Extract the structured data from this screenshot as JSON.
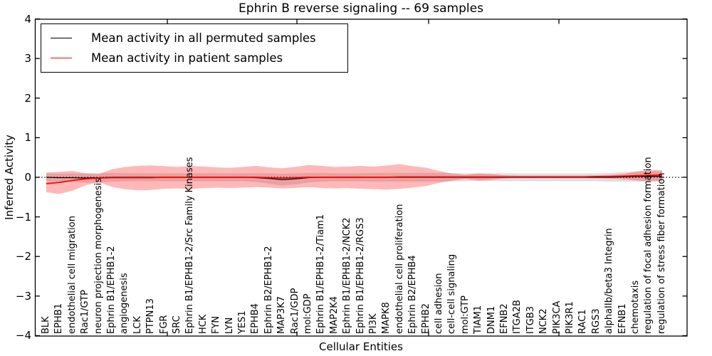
{
  "figure": {
    "title": "Ephrin B reverse signaling -- 69 samples",
    "xlabel": "Cellular Entities",
    "ylabel": "Inferred Activity"
  },
  "legend": {
    "items": [
      {
        "label": "Mean activity in all permuted samples",
        "color": "#000000"
      },
      {
        "label": "Mean activity in patient samples",
        "color": "#ff0000"
      }
    ]
  },
  "colors": {
    "patient_line": "#ff0000",
    "permuted_line": "#000000",
    "patient_band": "rgba(255,0,0,0.28)",
    "permuted_band": "rgba(128,128,128,0.25)",
    "axis": "#000000"
  },
  "chart_data": {
    "type": "line",
    "title": "Ephrin B reverse signaling -- 69 samples",
    "xlabel": "Cellular Entities",
    "ylabel": "Inferred Activity",
    "ylim": [
      -4,
      4
    ],
    "yticks": [
      -4,
      -3,
      -2,
      -1,
      0,
      1,
      2,
      3,
      4
    ],
    "grid": false,
    "legend_position": "upper left",
    "zero_line": 0,
    "categories": [
      "BLK",
      "EPHB1",
      "endothelial cell migration",
      "Rac1/GTP",
      "neuron projection morphogenesis",
      "Ephrin B1/EPHB1-2",
      "angiogenesis",
      "LCK",
      "PTPN13",
      "FGR",
      "SRC",
      "Ephrin B1/EPHB1-2/Src Family Kinases",
      "HCK",
      "FYN",
      "LYN",
      "YES1",
      "EPHB4",
      "Ephrin B2/EPHB1-2",
      "MAP3K7",
      "Rac1/GDP",
      "mol:GDP",
      "Ephrin B1/EPHB1-2/Tiam1",
      "MAP2K4",
      "Ephrin B1/EPHB1-2/NCK2",
      "Ephrin B1/EPHB1-2/RGS3",
      "PI3K",
      "MAPK8",
      "endothelial cell proliferation",
      "Ephrin B2/EPHB4",
      "EPHB2",
      "cell adhesion",
      "cell-cell signaling",
      "mol:GTP",
      "TIAM1",
      "DNM1",
      "EFNB2",
      "ITGA2B",
      "ITGB3",
      "NCK2",
      "PIK3CA",
      "PIK3R1",
      "RAC1",
      "RGS3",
      "alphaIIb/beta3 Integrin",
      "EFNB1",
      "chemotaxis",
      "regulation of focal adhesion formation",
      "regulation of stress fiber formation"
    ],
    "series": [
      {
        "name": "Mean activity in all permuted samples",
        "color": "#000000",
        "values": [
          0.0,
          -0.01,
          -0.01,
          -0.02,
          -0.01,
          0.0,
          0.0,
          0.0,
          0.0,
          0.0,
          0.0,
          0.0,
          0.0,
          0.0,
          0.0,
          0.0,
          -0.01,
          -0.03,
          -0.06,
          -0.04,
          -0.01,
          0.0,
          0.0,
          0.0,
          0.0,
          0.0,
          0.0,
          0.0,
          0.0,
          0.0,
          0.0,
          0.0,
          0.0,
          0.0,
          0.0,
          0.0,
          0.0,
          0.0,
          0.0,
          0.0,
          0.0,
          0.0,
          0.0,
          0.0,
          0.01,
          0.02,
          0.02,
          0.03
        ]
      },
      {
        "name": "Mean activity in patient samples",
        "color": "#ff0000",
        "values": [
          -0.16,
          -0.13,
          -0.08,
          -0.04,
          -0.02,
          -0.01,
          -0.01,
          -0.01,
          -0.01,
          0.0,
          0.0,
          0.0,
          0.0,
          0.0,
          0.0,
          0.0,
          0.0,
          -0.01,
          -0.02,
          -0.01,
          0.0,
          0.0,
          0.0,
          0.0,
          0.0,
          0.0,
          0.0,
          0.01,
          0.01,
          0.01,
          0.01,
          0.01,
          0.01,
          0.01,
          0.01,
          0.01,
          0.01,
          0.01,
          0.01,
          0.01,
          0.01,
          0.01,
          0.02,
          0.02,
          0.03,
          0.04,
          0.05,
          0.06
        ]
      }
    ],
    "bands": [
      {
        "name": "permuted samples std band",
        "color": "rgba(128,128,128,0.25)",
        "upper": [
          0.1,
          0.09,
          0.1,
          0.1,
          0.11,
          0.11,
          0.1,
          0.1,
          0.1,
          0.1,
          0.1,
          0.1,
          0.1,
          0.1,
          0.1,
          0.1,
          0.1,
          0.1,
          0.09,
          0.1,
          0.11,
          0.11,
          0.1,
          0.1,
          0.1,
          0.11,
          0.11,
          0.11,
          0.11,
          0.11,
          0.11,
          0.11,
          0.1,
          0.1,
          0.1,
          0.1,
          0.1,
          0.1,
          0.1,
          0.1,
          0.1,
          0.1,
          0.1,
          0.11,
          0.13,
          0.15,
          0.15,
          0.15
        ],
        "lower": [
          -0.1,
          -0.11,
          -0.12,
          -0.14,
          -0.13,
          -0.11,
          -0.1,
          -0.1,
          -0.1,
          -0.1,
          -0.1,
          -0.1,
          -0.1,
          -0.1,
          -0.1,
          -0.1,
          -0.12,
          -0.16,
          -0.21,
          -0.18,
          -0.13,
          -0.11,
          -0.1,
          -0.1,
          -0.1,
          -0.11,
          -0.11,
          -0.11,
          -0.11,
          -0.11,
          -0.11,
          -0.11,
          -0.1,
          -0.1,
          -0.1,
          -0.1,
          -0.1,
          -0.1,
          -0.1,
          -0.1,
          -0.1,
          -0.1,
          -0.1,
          -0.11,
          -0.11,
          -0.11,
          -0.11,
          -0.09
        ]
      },
      {
        "name": "patient samples std band",
        "color": "rgba(255,0,0,0.28)",
        "upper": [
          0.12,
          0.14,
          0.16,
          0.1,
          0.08,
          0.2,
          0.26,
          0.29,
          0.3,
          0.28,
          0.26,
          0.29,
          0.27,
          0.25,
          0.24,
          0.26,
          0.29,
          0.25,
          0.23,
          0.26,
          0.31,
          0.29,
          0.26,
          0.27,
          0.29,
          0.27,
          0.3,
          0.33,
          0.28,
          0.24,
          0.16,
          0.09,
          0.06,
          0.1,
          0.08,
          0.05,
          0.04,
          0.04,
          0.04,
          0.04,
          0.04,
          0.04,
          0.04,
          0.06,
          0.08,
          0.14,
          0.19,
          0.18
        ],
        "lower": [
          -0.38,
          -0.42,
          -0.34,
          -0.2,
          -0.12,
          -0.24,
          -0.3,
          -0.33,
          -0.32,
          -0.29,
          -0.28,
          -0.3,
          -0.27,
          -0.26,
          -0.27,
          -0.26,
          -0.25,
          -0.26,
          -0.28,
          -0.27,
          -0.25,
          -0.27,
          -0.28,
          -0.27,
          -0.29,
          -0.3,
          -0.31,
          -0.29,
          -0.26,
          -0.22,
          -0.14,
          -0.08,
          -0.04,
          -0.08,
          -0.06,
          -0.03,
          -0.02,
          -0.02,
          -0.02,
          -0.02,
          -0.02,
          -0.02,
          -0.02,
          -0.03,
          -0.05,
          -0.08,
          -0.1,
          -0.1
        ]
      }
    ]
  }
}
